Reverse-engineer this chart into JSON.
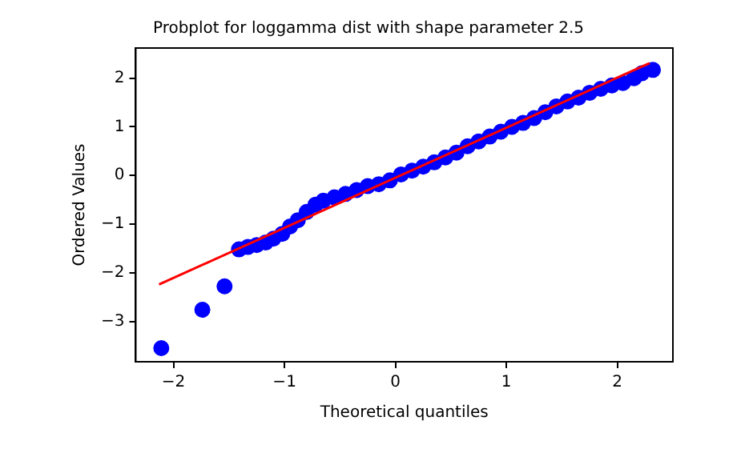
{
  "chart_data": {
    "type": "scatter",
    "title": "Probplot for loggamma dist with shape parameter 2.5",
    "xlabel": "Theoretical quantiles",
    "ylabel": "Ordered Values",
    "xlim": [
      -2.34,
      2.5
    ],
    "xticks": [
      -2,
      -1,
      0,
      1,
      2
    ],
    "ylim": [
      -3.83,
      2.62
    ],
    "yticks": [
      -3,
      -2,
      -1,
      0,
      1,
      2
    ],
    "grid": false,
    "legend": false,
    "series": [
      {
        "type": "scatter",
        "marker": "circle",
        "color": "#0000ff",
        "x": [
          -2.11,
          -1.74,
          -1.54,
          -1.41,
          -1.33,
          -1.25,
          -1.17,
          -1.1,
          -1.02,
          -0.95,
          -0.88,
          -0.8,
          -0.72,
          -0.65,
          -0.55,
          -0.45,
          -0.35,
          -0.25,
          -0.15,
          -0.05,
          0.05,
          0.15,
          0.25,
          0.35,
          0.45,
          0.55,
          0.65,
          0.75,
          0.85,
          0.95,
          1.05,
          1.15,
          1.25,
          1.35,
          1.45,
          1.55,
          1.65,
          1.75,
          1.85,
          1.95,
          2.05,
          2.15,
          2.22,
          2.32
        ],
        "values": [
          -3.55,
          -2.76,
          -2.28,
          -1.52,
          -1.47,
          -1.43,
          -1.38,
          -1.3,
          -1.2,
          -1.05,
          -0.92,
          -0.75,
          -0.6,
          -0.52,
          -0.45,
          -0.38,
          -0.3,
          -0.22,
          -0.18,
          -0.1,
          0.02,
          0.1,
          0.18,
          0.27,
          0.37,
          0.47,
          0.6,
          0.7,
          0.8,
          0.9,
          1.0,
          1.08,
          1.18,
          1.3,
          1.42,
          1.52,
          1.6,
          1.7,
          1.78,
          1.85,
          1.9,
          2.0,
          2.1,
          2.17
        ]
      },
      {
        "type": "line",
        "color": "#ff0000",
        "x": [
          -2.13,
          2.29
        ],
        "values": [
          -2.24,
          2.31
        ]
      }
    ]
  }
}
